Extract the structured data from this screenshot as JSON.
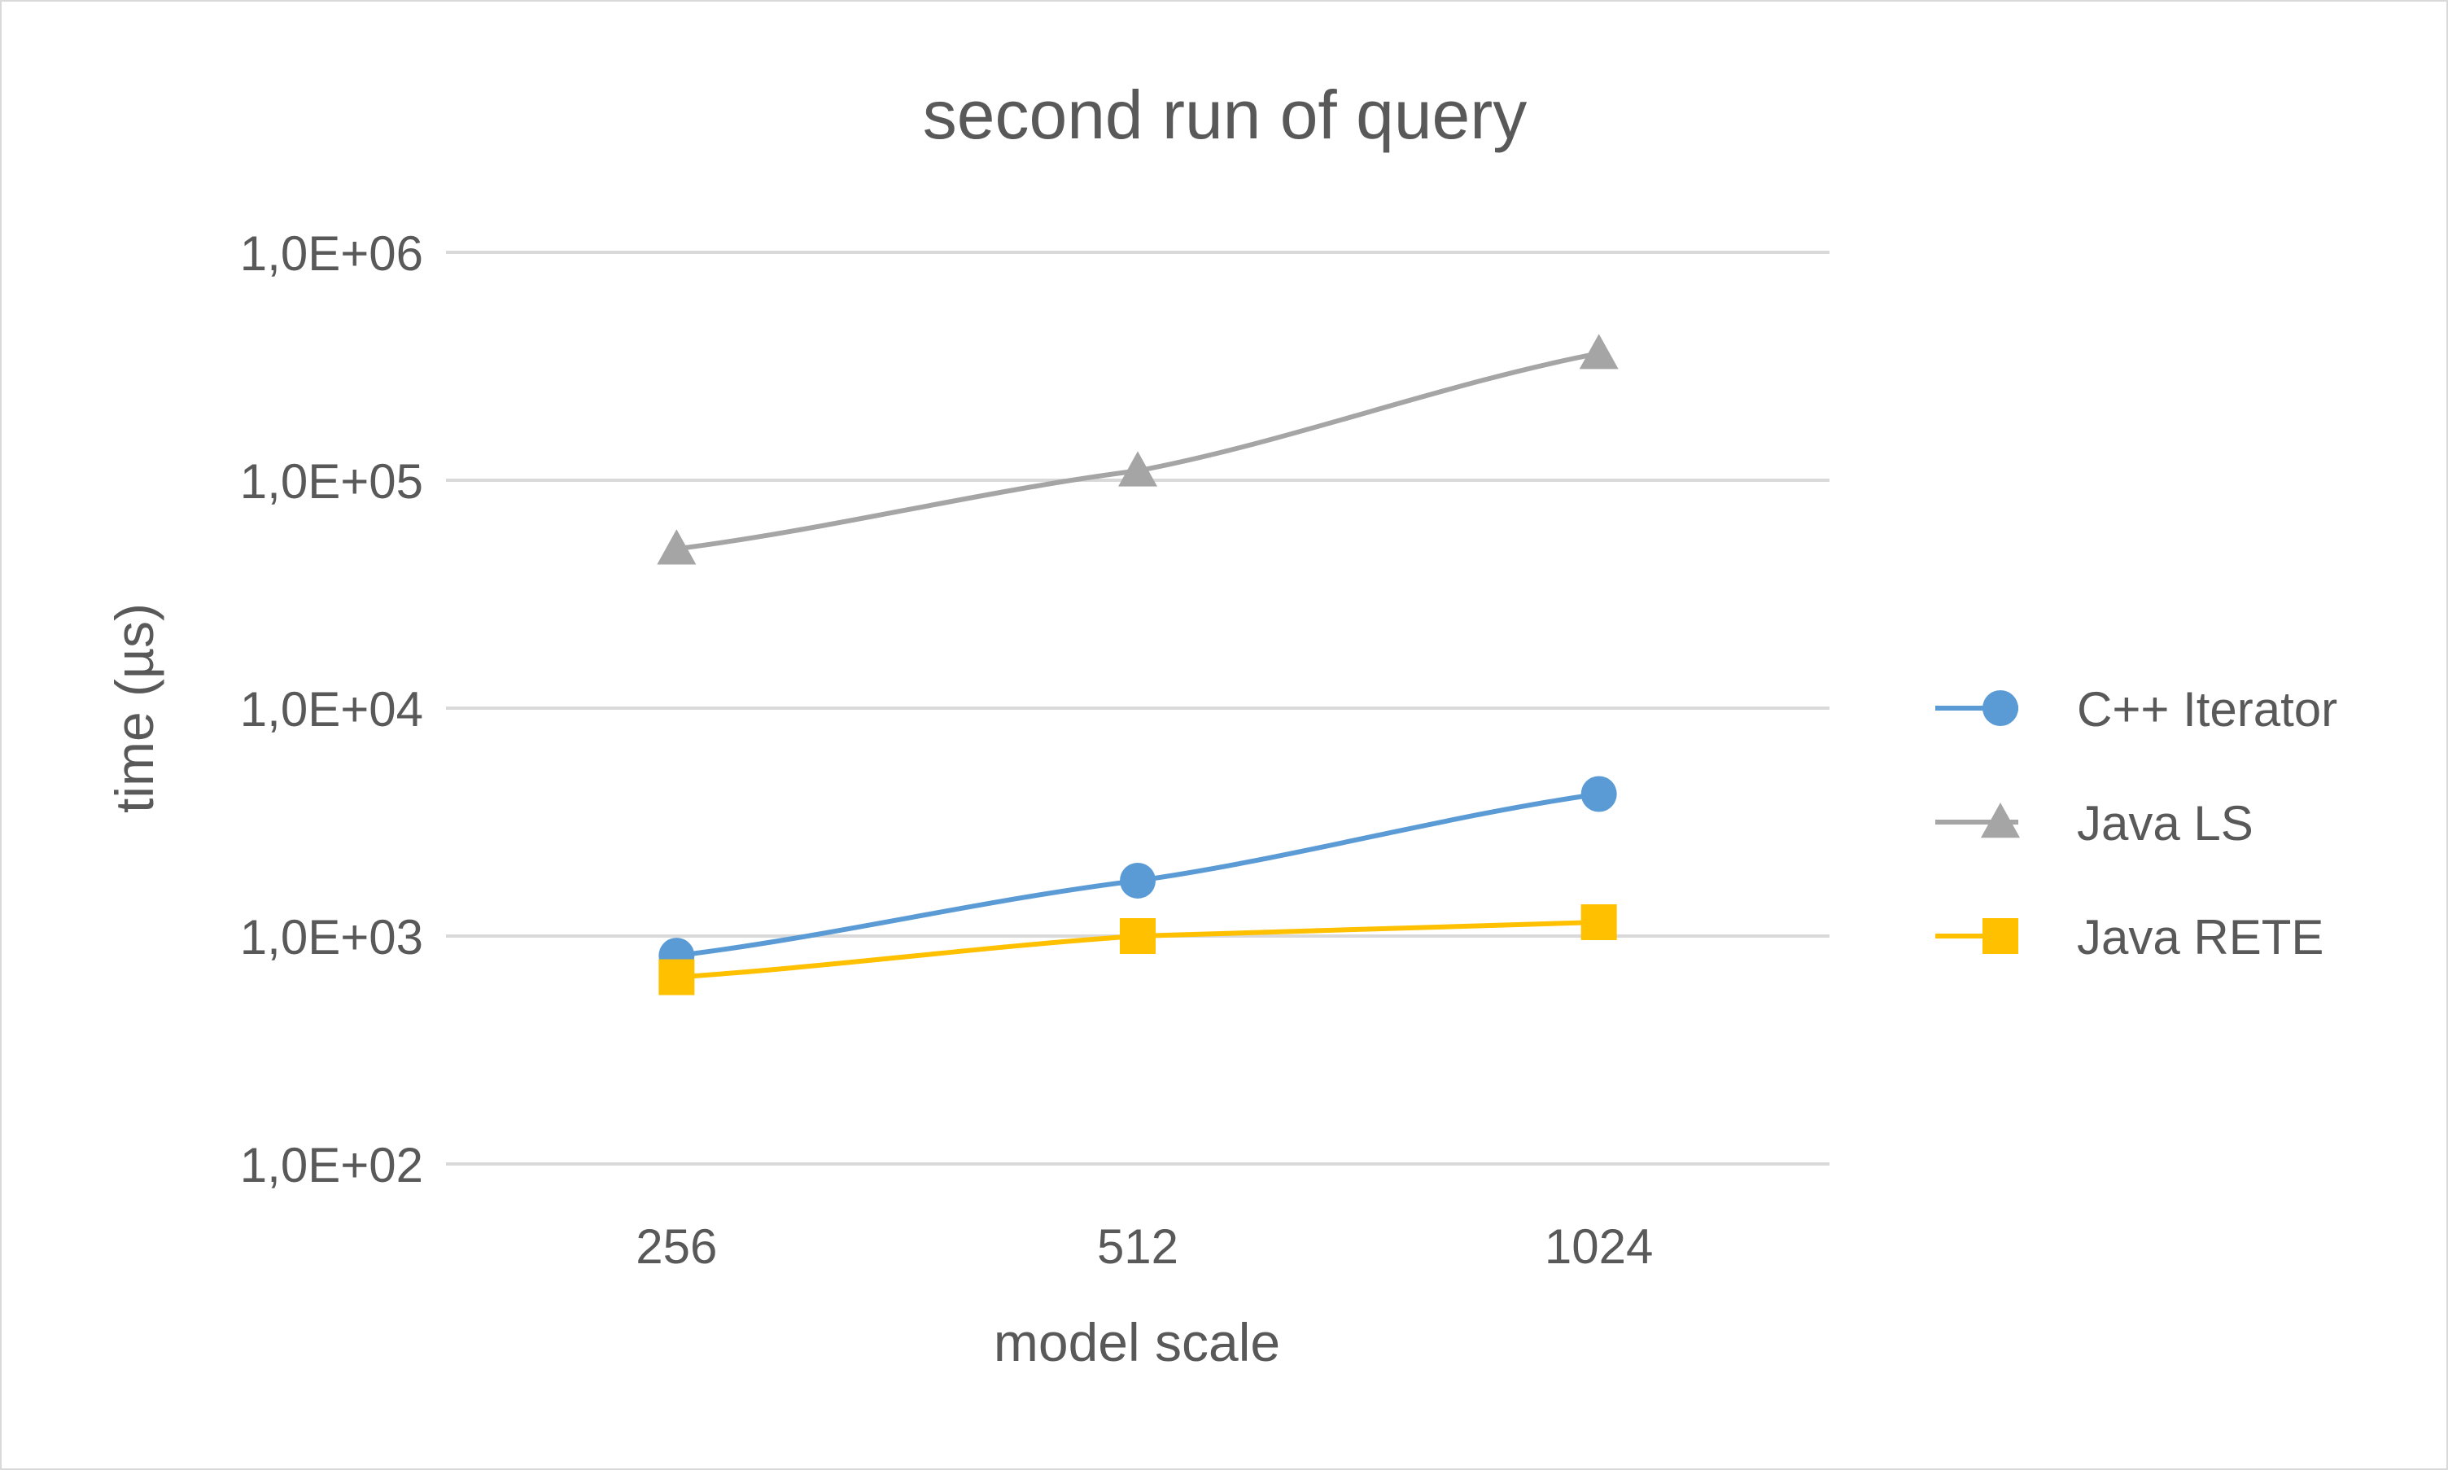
{
  "chart_data": {
    "type": "line",
    "title": "second run of query",
    "xlabel": "model scale",
    "ylabel": "time (µs)",
    "categories": [
      "256",
      "512",
      "1024"
    ],
    "y_scale": "log",
    "ylim": [
      100,
      1000000
    ],
    "y_ticks": [
      100,
      1000,
      10000,
      100000,
      1000000
    ],
    "y_tick_labels": [
      "1,0E+02",
      "1,0E+03",
      "1,0E+04",
      "1,0E+05",
      "1,0E+06"
    ],
    "grid": true,
    "legend_position": "right",
    "series": [
      {
        "name": "C++ Iterator",
        "values": [
          820,
          1750,
          4200
        ],
        "color": "#5b9bd5",
        "marker": "circle"
      },
      {
        "name": "Java LS",
        "values": [
          50000,
          110000,
          360000
        ],
        "color": "#a5a5a5",
        "marker": "triangle"
      },
      {
        "name": "Java RETE",
        "values": [
          660,
          1000,
          1150
        ],
        "color": "#ffc000",
        "marker": "square"
      }
    ]
  }
}
